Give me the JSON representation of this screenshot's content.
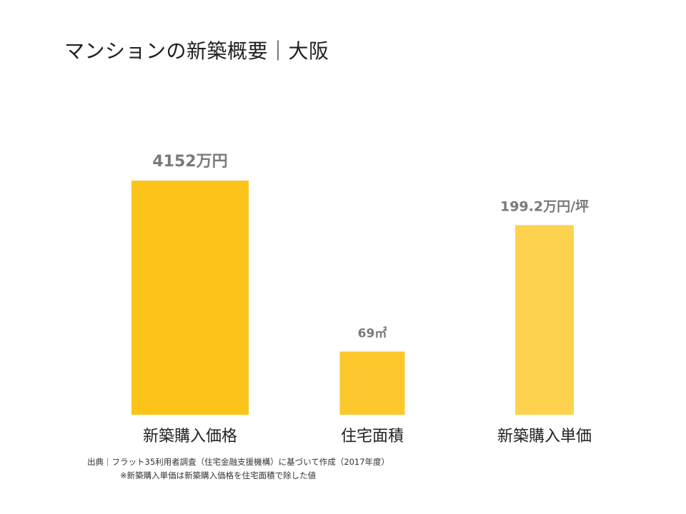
{
  "title": "マンションの新築概要｜大阪",
  "chart_data": {
    "type": "bar",
    "title": "マンションの新築概要｜大阪",
    "categories": [
      "新築購入価格",
      "住宅面積",
      "新築購入単価"
    ],
    "values": [
      4152,
      69,
      199.2
    ],
    "units": [
      "万円",
      "㎡",
      "万円/坪"
    ],
    "data_labels": [
      "4152万円",
      "69㎡",
      "199.2万円/坪"
    ],
    "note": "each bar uses its own unit; bar heights are not on a shared scale",
    "relative_heights": [
      1.0,
      0.27,
      0.81
    ],
    "colors": [
      "#FCC419",
      "#FCC82E",
      "#FDD24F"
    ],
    "xlabel": "",
    "ylabel": "",
    "grid": false,
    "legend": "none"
  },
  "source": {
    "line1": "出典｜フラット35利用者調査（住宅金融支援機構）に基づいて作成（2017年度）",
    "line2": "※新築購入単価は新築購入価格を住宅面積で除した値"
  }
}
